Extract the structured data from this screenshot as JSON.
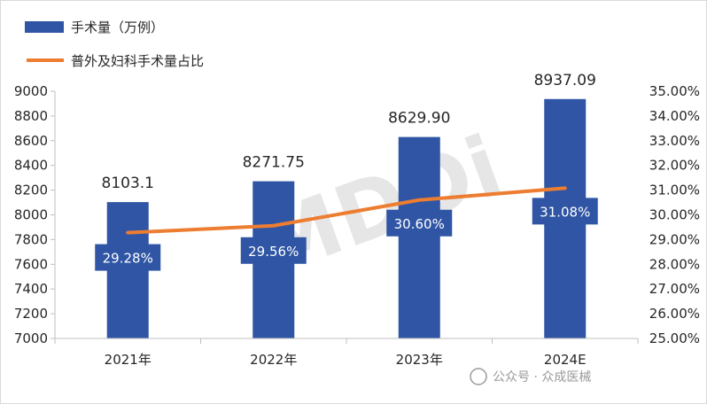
{
  "chart_data": {
    "type": "bar",
    "categories": [
      "2021年",
      "2022年",
      "2023年",
      "2024E"
    ],
    "series": [
      {
        "name": "手术量（万例）",
        "type": "bar",
        "axis": "left",
        "values": [
          8103.1,
          8271.75,
          8629.9,
          8937.09
        ],
        "labels": [
          "8103.1",
          "8271.75",
          "8629.90",
          "8937.09"
        ],
        "color": "#2f55a4"
      },
      {
        "name": "普外及妇科手术量占比",
        "type": "line",
        "axis": "right",
        "values": [
          29.28,
          29.56,
          30.6,
          31.08
        ],
        "labels": [
          "29.28%",
          "29.56%",
          "30.60%",
          "31.08%"
        ],
        "color": "#ed7d31"
      }
    ],
    "y_left": {
      "ylim": [
        7000,
        9000
      ],
      "ticks": [
        "7000",
        "7200",
        "7400",
        "7600",
        "7800",
        "8000",
        "8200",
        "8400",
        "8600",
        "8800",
        "9000"
      ]
    },
    "y_right": {
      "ylim": [
        25,
        35
      ],
      "ticks": [
        "25.00%",
        "26.00%",
        "27.00%",
        "28.00%",
        "29.00%",
        "30.00%",
        "31.00%",
        "32.00%",
        "33.00%",
        "34.00%",
        "35.00%"
      ]
    },
    "legend_position": "top-left",
    "grid": false
  },
  "watermark": {
    "logo_text": "MDDi",
    "caption": "公众号 · 众成医械"
  }
}
